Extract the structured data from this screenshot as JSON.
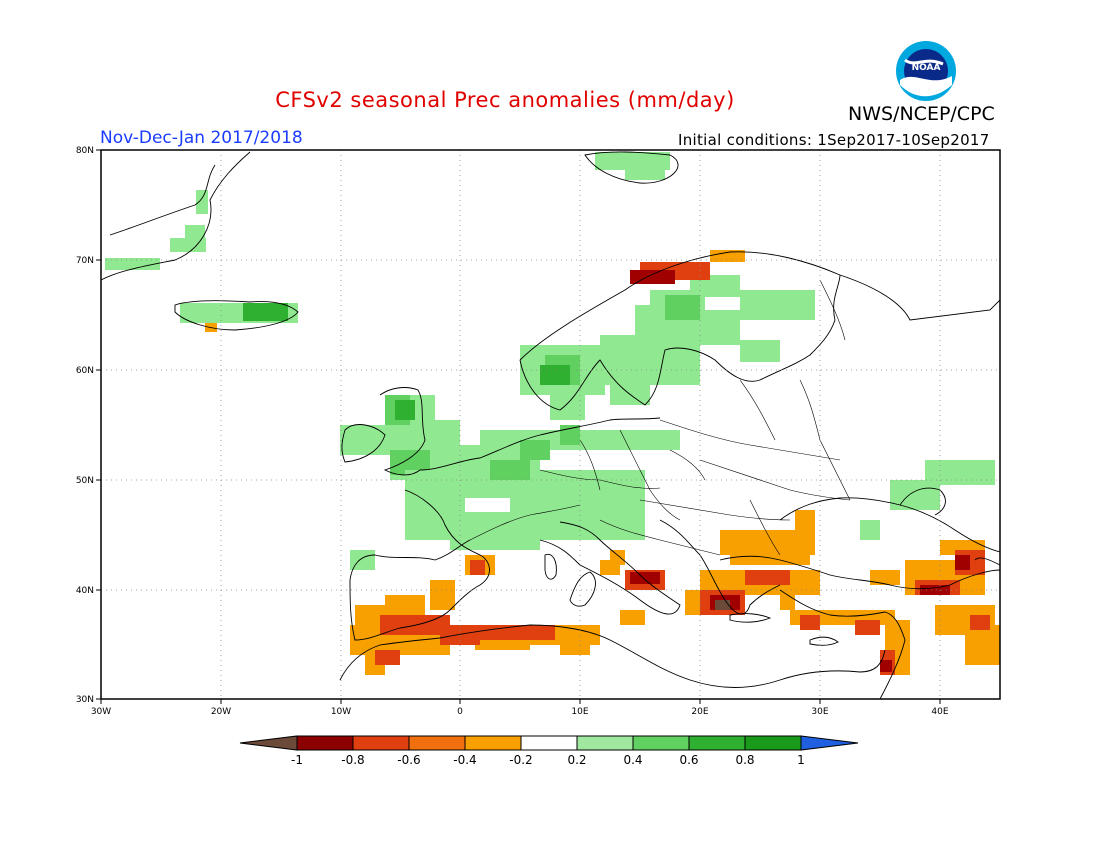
{
  "header": {
    "title": "CFSv2 seasonal Prec anomalies (mm/day)",
    "org": "NWS/NCEP/CPC",
    "period": "Nov-Dec-Jan 2017/2018",
    "initial_conditions": "Initial conditions: 1Sep2017-10Sep2017",
    "logo_text": "NOAA"
  },
  "map": {
    "lon_ticks": [
      "30W",
      "20W",
      "10W",
      "0",
      "10E",
      "20E",
      "30E",
      "40E"
    ],
    "lat_ticks": [
      "80N",
      "70N",
      "60N",
      "50N",
      "40N",
      "30N"
    ],
    "lon_range": [
      -30,
      45
    ],
    "lat_range": [
      30,
      80
    ],
    "projection": "equirectangular",
    "grid": "dotted"
  },
  "colorbar": {
    "labels": [
      "-1",
      "-0.8",
      "-0.6",
      "-0.4",
      "-0.2",
      "0.2",
      "0.4",
      "0.6",
      "0.8",
      "1"
    ],
    "colors": [
      "#8b0000",
      "#e04010",
      "#f07010",
      "#f8a000",
      "#ffffff",
      "#a0e8a0",
      "#60d060",
      "#30b030",
      "#1a9a1a"
    ],
    "under_color": "#6b4a3a",
    "over_color": "#2060e0"
  },
  "colors": {
    "title": "#e00000",
    "period": "#1a3cff",
    "green_light": "#90e890",
    "green_mid": "#60d060",
    "green_dark": "#30b030",
    "orange": "#f8a000",
    "red_orange": "#e04010",
    "dark_red": "#a00000",
    "brown": "#6b4a3a"
  }
}
